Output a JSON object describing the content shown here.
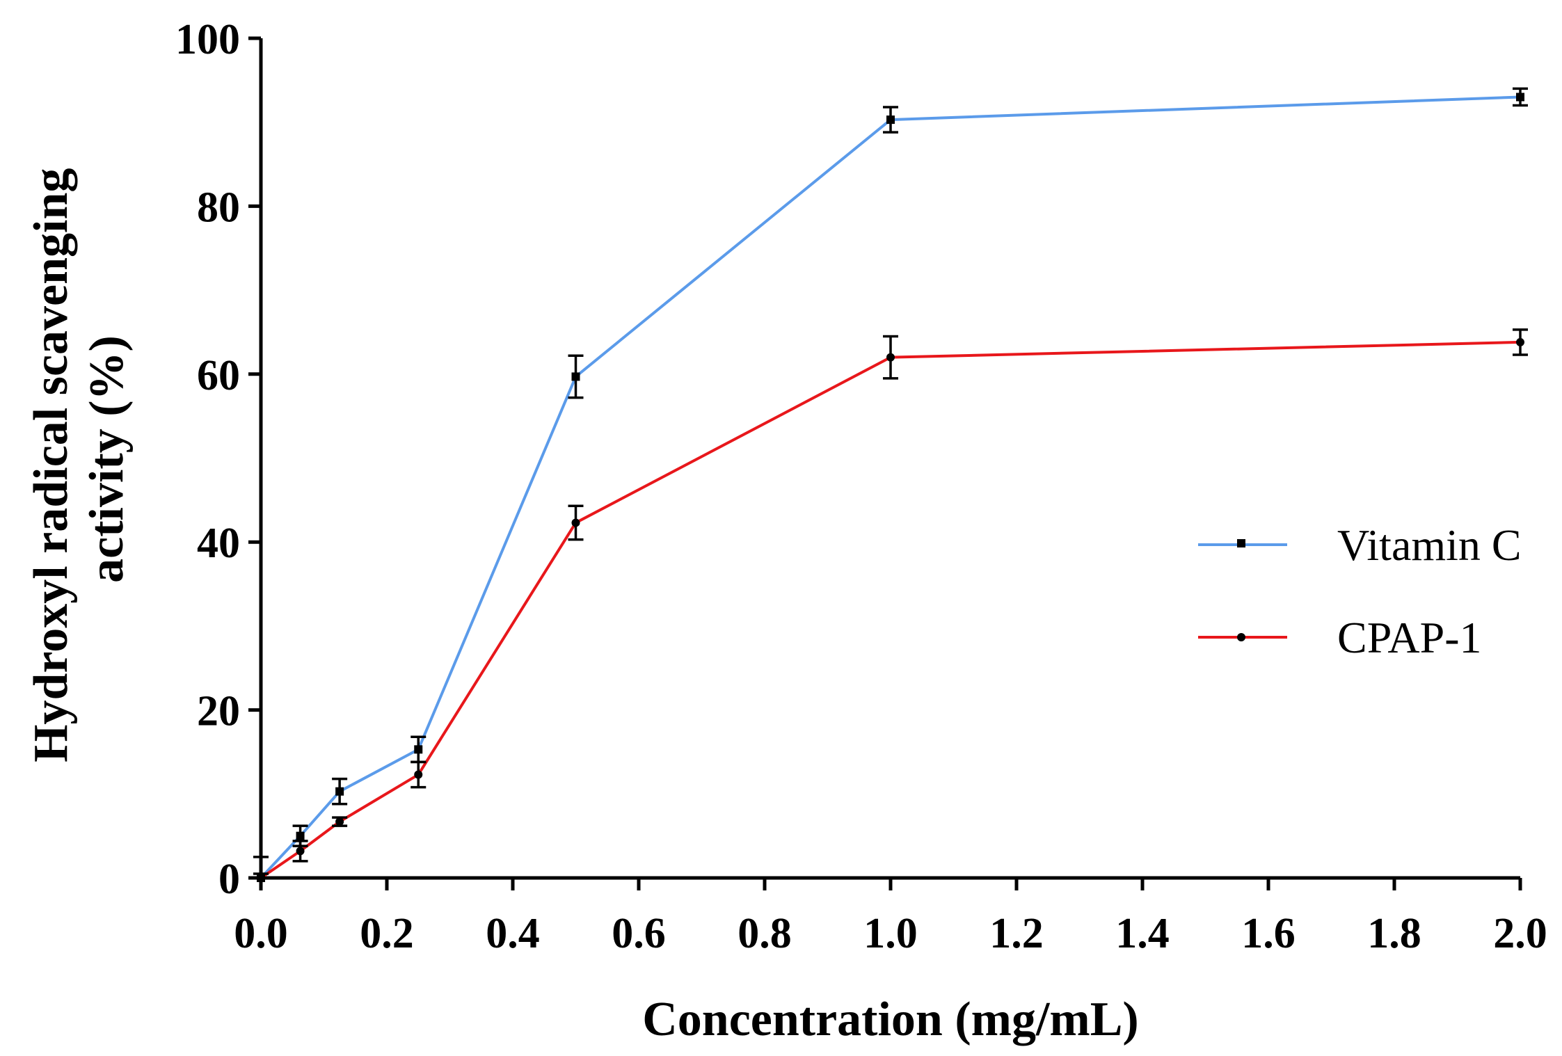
{
  "chart_data": {
    "type": "line",
    "title": "",
    "xlabel": "Concentration (mg/mL)",
    "ylabel_lines": [
      "Hydroxyl radical scavenging",
      "activity (%)"
    ],
    "xlim": [
      0,
      2.0
    ],
    "ylim": [
      0,
      100
    ],
    "x_ticks": [
      0.0,
      0.2,
      0.4,
      0.6,
      0.8,
      1.0,
      1.2,
      1.4,
      1.6,
      1.8,
      2.0
    ],
    "x_tick_labels": [
      "0.0",
      "0.2",
      "0.4",
      "0.6",
      "0.8",
      "1.0",
      "1.2",
      "1.4",
      "1.6",
      "1.8",
      "2.0"
    ],
    "y_ticks": [
      0,
      20,
      40,
      60,
      80,
      100
    ],
    "y_tick_labels": [
      "0",
      "20",
      "40",
      "60",
      "80",
      "100"
    ],
    "grid": false,
    "legend_position": "right",
    "series": [
      {
        "name": "Vitamin C",
        "color": "#5b9bea",
        "marker": "square",
        "x": [
          0,
          0.0625,
          0.125,
          0.25,
          0.5,
          1.0,
          2.0
        ],
        "y": [
          0,
          5.0,
          10.3,
          15.3,
          59.7,
          90.3,
          93.0
        ],
        "error": [
          2.5,
          1.2,
          1.5,
          1.5,
          2.5,
          1.5,
          1.0
        ]
      },
      {
        "name": "CPAP-1",
        "color": "#e8171b",
        "marker": "circle",
        "x": [
          0,
          0.0625,
          0.125,
          0.25,
          0.5,
          1.0,
          2.0
        ],
        "y": [
          0,
          3.2,
          6.7,
          12.3,
          42.3,
          62.0,
          63.8
        ],
        "error": [
          0.5,
          1.2,
          0.5,
          1.5,
          2.0,
          2.5,
          1.5
        ]
      }
    ]
  }
}
